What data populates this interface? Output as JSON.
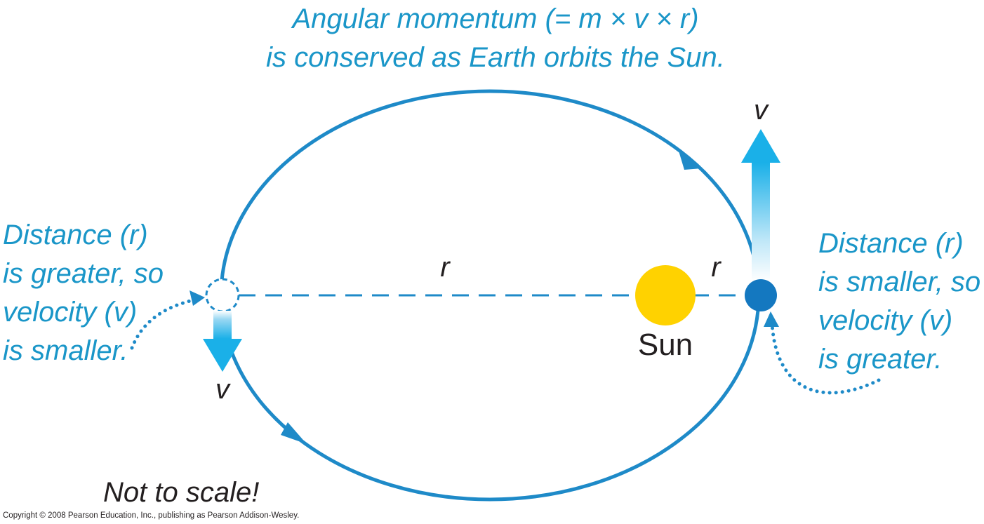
{
  "title": {
    "line1": "Angular momentum (= m × v × r)",
    "line2": "is conserved as Earth orbits the Sun."
  },
  "left_note": {
    "lines": [
      "Distance (r)",
      "is greater, so",
      "velocity (v)",
      "is smaller."
    ]
  },
  "right_note": {
    "lines": [
      "Distance (r)",
      "is smaller, so",
      "velocity (v)",
      "is greater."
    ]
  },
  "labels": {
    "r_far": "r",
    "r_near": "r",
    "v_far": "v",
    "v_near": "v",
    "sun": "Sun",
    "scale_note": "Not to scale!",
    "copyright": "Copyright © 2008 Pearson Education, Inc., publishing as Pearson Addison-Wesley."
  },
  "colors": {
    "orbit": "#1e8ac8",
    "text_accent": "#1a96c8",
    "sun": "#ffd200",
    "earth": "#1478c0",
    "arrow_top": "#1ab0e8",
    "arrow_fade": "#dff3fc",
    "text_dark": "#231f20"
  }
}
